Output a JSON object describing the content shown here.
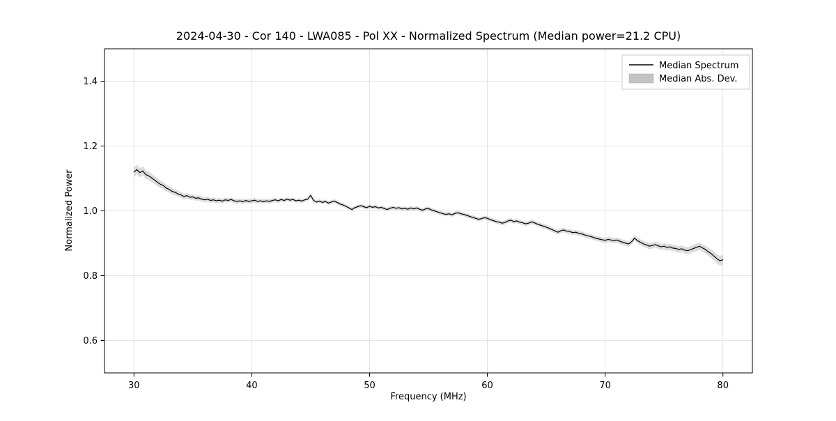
{
  "figure": {
    "title": "2024-04-30 - Cor 140 - LWA085 - Pol XX - Normalized Spectrum (Median power=21.2 CPU)",
    "xlabel": "Frequency (MHz)",
    "ylabel": "Normalized Power",
    "legend": [
      {
        "label": "Median Spectrum",
        "type": "line",
        "color": "#000000"
      },
      {
        "label": "Median Abs. Dev.",
        "type": "patch",
        "color": "#c4c4c4"
      }
    ]
  },
  "chart_data": {
    "type": "line",
    "title": "2024-04-30 - Cor 140 - LWA085 - Pol XX - Normalized Spectrum (Median power=21.2 CPU)",
    "xlabel": "Frequency (MHz)",
    "ylabel": "Normalized Power",
    "xlim": [
      27.5,
      82.5
    ],
    "ylim": [
      0.5,
      1.5
    ],
    "xticks": [
      30,
      40,
      50,
      60,
      70,
      80
    ],
    "yticks": [
      0.6,
      0.8,
      1.0,
      1.2,
      1.4
    ],
    "grid": true,
    "legend_position": "upper right",
    "x_start": 30.0,
    "x_step": 0.25,
    "series": [
      {
        "name": "Median Spectrum",
        "type": "line",
        "color": "#000000",
        "values": [
          1.12,
          1.127,
          1.118,
          1.123,
          1.112,
          1.108,
          1.102,
          1.095,
          1.088,
          1.082,
          1.078,
          1.07,
          1.066,
          1.06,
          1.057,
          1.052,
          1.049,
          1.044,
          1.047,
          1.042,
          1.043,
          1.039,
          1.04,
          1.036,
          1.034,
          1.036,
          1.032,
          1.034,
          1.031,
          1.033,
          1.03,
          1.034,
          1.032,
          1.035,
          1.031,
          1.029,
          1.031,
          1.028,
          1.032,
          1.029,
          1.031,
          1.033,
          1.029,
          1.031,
          1.028,
          1.031,
          1.029,
          1.032,
          1.034,
          1.031,
          1.035,
          1.032,
          1.036,
          1.033,
          1.035,
          1.031,
          1.033,
          1.03,
          1.034,
          1.036,
          1.048,
          1.032,
          1.027,
          1.03,
          1.026,
          1.029,
          1.024,
          1.027,
          1.03,
          1.026,
          1.021,
          1.018,
          1.014,
          1.009,
          1.004,
          1.01,
          1.013,
          1.016,
          1.013,
          1.01,
          1.014,
          1.011,
          1.013,
          1.009,
          1.011,
          1.007,
          1.004,
          1.008,
          1.011,
          1.008,
          1.01,
          1.006,
          1.008,
          1.005,
          1.009,
          1.006,
          1.009,
          1.005,
          1.002,
          1.006,
          1.007,
          1.003,
          1.0,
          0.997,
          0.994,
          0.991,
          0.989,
          0.991,
          0.988,
          0.992,
          0.994,
          0.991,
          0.989,
          0.986,
          0.983,
          0.98,
          0.977,
          0.974,
          0.976,
          0.979,
          0.977,
          0.973,
          0.97,
          0.967,
          0.965,
          0.962,
          0.964,
          0.969,
          0.971,
          0.967,
          0.969,
          0.965,
          0.963,
          0.96,
          0.962,
          0.966,
          0.963,
          0.959,
          0.956,
          0.953,
          0.95,
          0.946,
          0.942,
          0.938,
          0.934,
          0.939,
          0.941,
          0.937,
          0.936,
          0.933,
          0.934,
          0.931,
          0.929,
          0.926,
          0.923,
          0.921,
          0.918,
          0.915,
          0.913,
          0.911,
          0.909,
          0.912,
          0.91,
          0.908,
          0.91,
          0.906,
          0.903,
          0.9,
          0.898,
          0.905,
          0.916,
          0.908,
          0.903,
          0.898,
          0.895,
          0.891,
          0.893,
          0.896,
          0.892,
          0.889,
          0.891,
          0.887,
          0.889,
          0.885,
          0.884,
          0.881,
          0.883,
          0.879,
          0.877,
          0.88,
          0.884,
          0.887,
          0.891,
          0.886,
          0.881,
          0.874,
          0.868,
          0.86,
          0.852,
          0.846,
          0.849
        ]
      },
      {
        "name": "Median Abs. Dev.",
        "type": "band",
        "color": "#c4c4c4",
        "half_width_points": {
          "x": [
            30.0,
            31.5,
            33.0,
            35.0,
            38.0,
            45.0,
            55.0,
            65.0,
            70.0,
            73.0,
            76.0,
            78.5,
            80.0
          ],
          "v": [
            0.015,
            0.013,
            0.01,
            0.008,
            0.007,
            0.006,
            0.006,
            0.007,
            0.008,
            0.009,
            0.01,
            0.012,
            0.016
          ]
        }
      }
    ]
  }
}
